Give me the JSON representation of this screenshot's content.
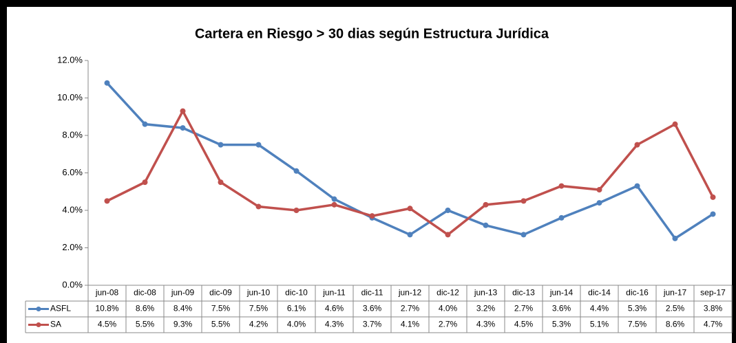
{
  "chart_data": {
    "type": "line",
    "title": "Cartera en Riesgo > 30 dias según Estructura Jurídica",
    "categories": [
      "jun-08",
      "dic-08",
      "jun-09",
      "dic-09",
      "jun-10",
      "dic-10",
      "jun-11",
      "dic-11",
      "jun-12",
      "dic-12",
      "jun-13",
      "dic-13",
      "jun-14",
      "dic-14",
      "dic-16",
      "jun-17",
      "sep-17"
    ],
    "series": [
      {
        "name": "ASFL",
        "color": "#4f81bd",
        "values": [
          10.8,
          8.6,
          8.4,
          7.5,
          7.5,
          6.1,
          4.6,
          3.6,
          2.7,
          4.0,
          3.2,
          2.7,
          3.6,
          4.4,
          5.3,
          2.5,
          3.8
        ],
        "value_labels": [
          "10.8%",
          "8.6%",
          "8.4%",
          "7.5%",
          "7.5%",
          "6.1%",
          "4.6%",
          "3.6%",
          "2.7%",
          "4.0%",
          "3.2%",
          "2.7%",
          "3.6%",
          "4.4%",
          "5.3%",
          "2.5%",
          "3.8%"
        ]
      },
      {
        "name": "SA",
        "color": "#c0504d",
        "values": [
          4.5,
          5.5,
          9.3,
          5.5,
          4.2,
          4.0,
          4.3,
          3.7,
          4.1,
          2.7,
          4.3,
          4.5,
          5.3,
          5.1,
          7.5,
          8.6,
          4.7
        ],
        "value_labels": [
          "4.5%",
          "5.5%",
          "9.3%",
          "5.5%",
          "4.2%",
          "4.0%",
          "4.3%",
          "3.7%",
          "4.1%",
          "2.7%",
          "4.3%",
          "4.5%",
          "5.3%",
          "5.1%",
          "7.5%",
          "8.6%",
          "4.7%"
        ]
      }
    ],
    "ylim": [
      0,
      12
    ],
    "yticks": [
      {
        "value": 0,
        "label": "0.0%"
      },
      {
        "value": 2,
        "label": "2.0%"
      },
      {
        "value": 4,
        "label": "4.0%"
      },
      {
        "value": 6,
        "label": "6.0%"
      },
      {
        "value": 8,
        "label": "8.0%"
      },
      {
        "value": 10,
        "label": "10.0%"
      },
      {
        "value": 12,
        "label": "12.0%"
      }
    ],
    "grid": false
  }
}
